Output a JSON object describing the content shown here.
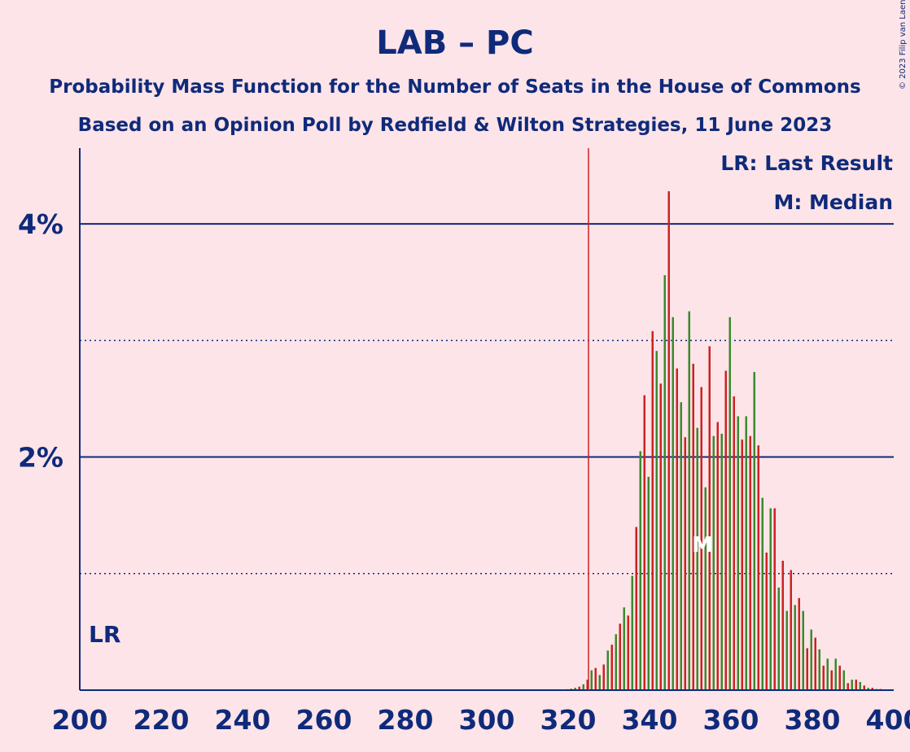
{
  "title": "LAB – PC",
  "subtitle1": "Probability Mass Function for the Number of Seats in the House of Commons",
  "subtitle2": "Based on an Opinion Poll by Redfield & Wilton Strategies, 11 June 2023",
  "copyright": "© 2023 Filip van Laenen",
  "legend": {
    "last_result": "LR: Last Result",
    "median": "M: Median"
  },
  "markers": {
    "last_result_label": "LR",
    "median_label": "M"
  },
  "colors": {
    "background": "#fde4e8",
    "text": "#0f2a7a",
    "red": "#cc2222",
    "green": "#3a8a2e",
    "axis": "#0f2a7a"
  },
  "chart_data": {
    "type": "bar",
    "xlim": [
      200,
      400
    ],
    "ylim": [
      0,
      4.65
    ],
    "x_ticks": [
      "200",
      "220",
      "240",
      "260",
      "280",
      "300",
      "320",
      "340",
      "360",
      "380",
      "400"
    ],
    "y_ticks": [
      "2%",
      "4%"
    ],
    "y_tick_values": [
      2,
      4
    ],
    "y_dotted_gridlines": [
      1,
      3
    ],
    "last_result": 325,
    "median": 353,
    "seats": [
      318,
      319,
      320,
      321,
      322,
      323,
      324,
      325,
      326,
      327,
      328,
      329,
      330,
      331,
      332,
      333,
      334,
      335,
      336,
      337,
      338,
      339,
      340,
      341,
      342,
      343,
      344,
      345,
      346,
      347,
      348,
      349,
      350,
      351,
      352,
      353,
      354,
      355,
      356,
      357,
      358,
      359,
      360,
      361,
      362,
      363,
      364,
      365,
      366,
      367,
      368,
      369,
      370,
      371,
      372,
      373,
      374,
      375,
      376,
      377,
      378,
      379,
      380,
      381,
      382,
      383,
      384,
      385,
      386,
      387,
      388,
      389,
      390,
      391,
      392,
      393,
      394,
      395,
      396,
      397,
      398,
      399,
      400
    ],
    "values": [
      0.003,
      0.005,
      0.008,
      0.012,
      0.02,
      0.03,
      0.05,
      0.09,
      0.17,
      0.19,
      0.13,
      0.22,
      0.34,
      0.39,
      0.48,
      0.57,
      0.71,
      0.64,
      0.98,
      1.4,
      2.05,
      2.53,
      1.83,
      3.08,
      2.91,
      2.63,
      3.56,
      4.28,
      3.2,
      2.76,
      2.47,
      2.17,
      3.25,
      2.8,
      2.25,
      2.6,
      1.74,
      2.95,
      2.18,
      2.3,
      2.2,
      2.74,
      3.2,
      2.52,
      2.35,
      2.15,
      2.35,
      2.18,
      2.73,
      2.1,
      1.65,
      1.18,
      1.56,
      1.56,
      0.88,
      1.11,
      0.68,
      1.03,
      0.73,
      0.79,
      0.68,
      0.36,
      0.52,
      0.45,
      0.35,
      0.21,
      0.27,
      0.17,
      0.27,
      0.21,
      0.17,
      0.06,
      0.09,
      0.09,
      0.07,
      0.04,
      0.02,
      0.02,
      0.01,
      0.01,
      0.005,
      0.005,
      0.003
    ]
  }
}
